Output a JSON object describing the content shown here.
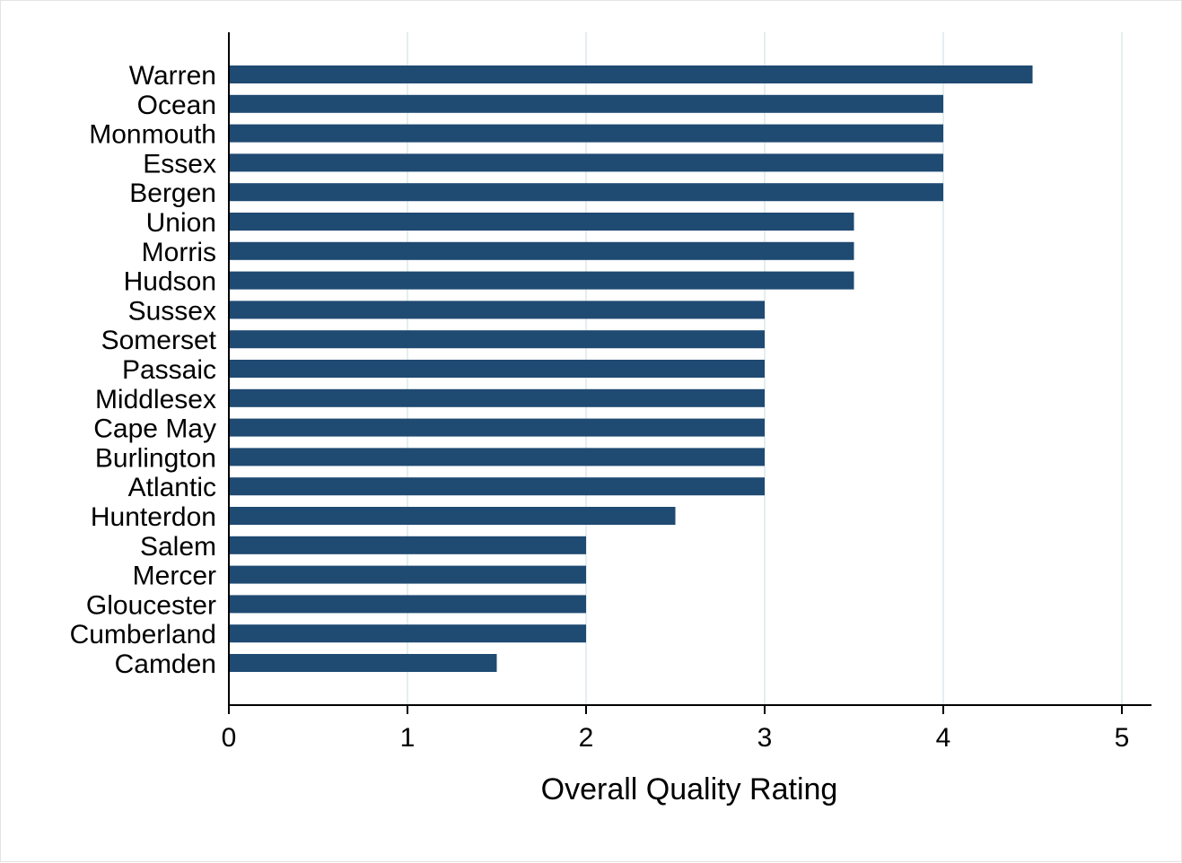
{
  "chart_data": {
    "type": "bar",
    "orientation": "horizontal",
    "title": "",
    "xlabel": "Overall Quality Rating",
    "ylabel": "",
    "xlim": [
      0,
      5.17
    ],
    "xticks": [
      0,
      1,
      2,
      3,
      4,
      5
    ],
    "grid": "vertical",
    "bar_color": "#1f4a72",
    "grid_color": "#e4eef0",
    "categories": [
      "Warren",
      "Ocean",
      "Monmouth",
      "Essex",
      "Bergen",
      "Union",
      "Morris",
      "Hudson",
      "Sussex",
      "Somerset",
      "Passaic",
      "Middlesex",
      "Cape May",
      "Burlington",
      "Atlantic",
      "Hunterdon",
      "Salem",
      "Mercer",
      "Gloucester",
      "Cumberland",
      "Camden"
    ],
    "values": [
      4.5,
      4,
      4,
      4,
      4,
      3.5,
      3.5,
      3.5,
      3,
      3,
      3,
      3,
      3,
      3,
      3,
      2.5,
      2,
      2,
      2,
      2,
      1.5
    ]
  }
}
